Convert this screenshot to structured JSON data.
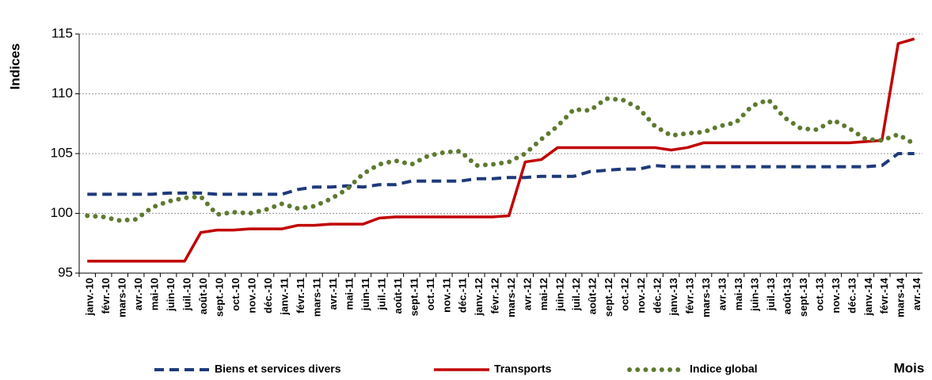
{
  "chart_data": {
    "type": "line",
    "x_label": "Mois",
    "y_label": "Indices",
    "categories": [
      "janv.-10",
      "févr.-10",
      "mars-10",
      "avr.-10",
      "mai-10",
      "juin-10",
      "juil.-10",
      "août-10",
      "sept.-10",
      "oct.-10",
      "nov.-10",
      "déc.-10",
      "janv.-11",
      "févr.-11",
      "mars-11",
      "avr.-11",
      "mai-11",
      "juin-11",
      "juil.-11",
      "août-11",
      "sept.-11",
      "oct.-11",
      "nov.-11",
      "déc.-11",
      "janv.-12",
      "févr.-12",
      "mars-12",
      "avr.-12",
      "mai-12",
      "juin-12",
      "juil.-12",
      "août-12",
      "sept.-12",
      "oct.-12",
      "nov.-12",
      "déc.-12",
      "janv.-13",
      "févr.-13",
      "mars-13",
      "avr.-13",
      "mai-13",
      "juin-13",
      "juil.-13",
      "août-13",
      "sept.-13",
      "oct.-13",
      "nov.-13",
      "déc.-13",
      "janv.-14",
      "févr.-14",
      "mars-14",
      "avr.-14"
    ],
    "series": [
      {
        "name": "Biens et services divers",
        "color": "#1f3a7a",
        "style": "dashed",
        "values": [
          101.6,
          101.6,
          101.6,
          101.6,
          101.6,
          101.7,
          101.7,
          101.7,
          101.6,
          101.6,
          101.6,
          101.6,
          101.6,
          102.0,
          102.2,
          102.2,
          102.3,
          102.2,
          102.4,
          102.4,
          102.7,
          102.7,
          102.7,
          102.7,
          102.9,
          102.9,
          103.0,
          103.0,
          103.1,
          103.1,
          103.1,
          103.5,
          103.6,
          103.7,
          103.7,
          104.0,
          103.9,
          103.9,
          103.9,
          103.9,
          103.9,
          103.9,
          103.9,
          103.9,
          103.9,
          103.9,
          103.9,
          103.9,
          103.9,
          104.0,
          105.0,
          105.0
        ]
      },
      {
        "name": "Transports",
        "color": "#c00000",
        "style": "solid",
        "values": [
          96.0,
          96.0,
          96.0,
          96.0,
          96.0,
          96.0,
          96.0,
          98.4,
          98.6,
          98.6,
          98.7,
          98.7,
          98.7,
          99.0,
          99.0,
          99.1,
          99.1,
          99.1,
          99.6,
          99.7,
          99.7,
          99.7,
          99.7,
          99.7,
          99.7,
          99.7,
          99.8,
          104.3,
          104.5,
          105.5,
          105.5,
          105.5,
          105.5,
          105.5,
          105.5,
          105.5,
          105.3,
          105.5,
          105.9,
          105.9,
          105.9,
          105.9,
          105.9,
          105.9,
          105.9,
          105.9,
          105.9,
          105.9,
          106.0,
          106.1,
          114.2,
          114.6
        ]
      },
      {
        "name": "Indice global",
        "color": "#5e7a30",
        "style": "dotted",
        "values": [
          99.8,
          99.7,
          99.4,
          99.5,
          100.5,
          101.0,
          101.3,
          101.4,
          99.9,
          100.1,
          100.0,
          100.3,
          100.8,
          100.4,
          100.6,
          101.2,
          102.0,
          103.3,
          104.1,
          104.4,
          104.1,
          104.8,
          105.1,
          105.2,
          104.0,
          104.1,
          104.3,
          105.0,
          106.2,
          107.3,
          108.7,
          108.6,
          109.6,
          109.5,
          108.8,
          107.3,
          106.5,
          106.7,
          106.8,
          107.3,
          107.6,
          109.0,
          109.5,
          108.0,
          107.1,
          107.0,
          107.8,
          107.1,
          106.2,
          106.1,
          106.6,
          105.8
        ]
      }
    ],
    "ylim": [
      95,
      115
    ],
    "yticks": [
      95,
      100,
      105,
      110,
      115
    ],
    "grid": true,
    "legend": "bottom"
  }
}
